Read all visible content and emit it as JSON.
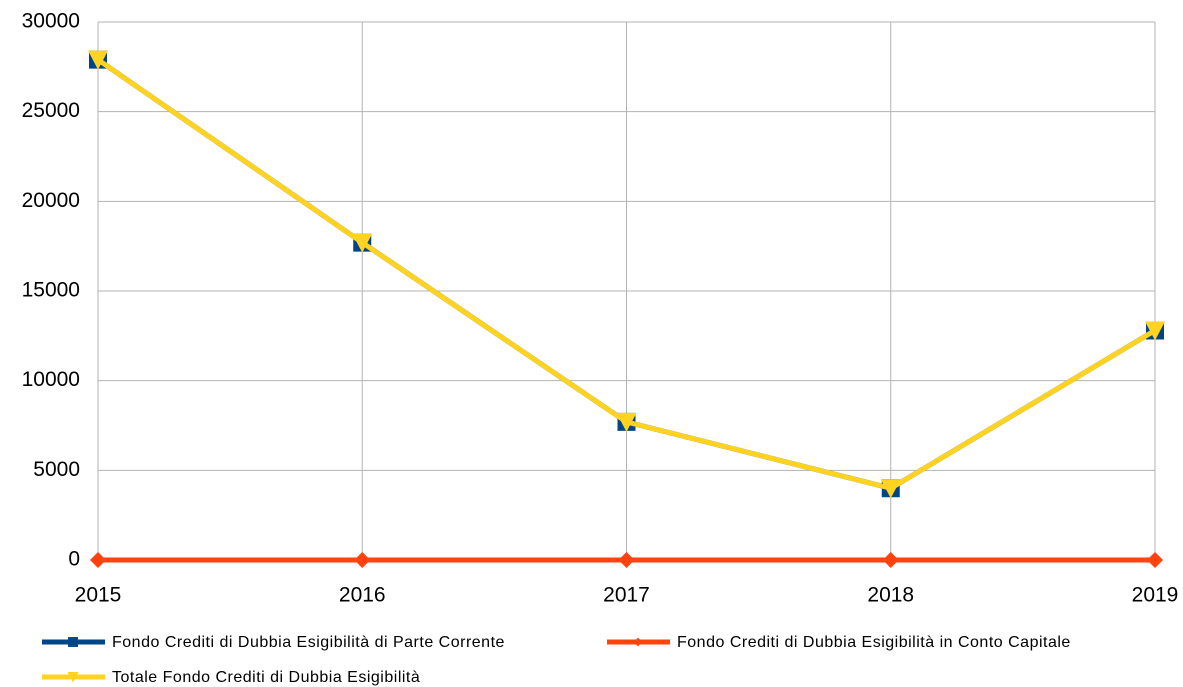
{
  "chart_data": {
    "type": "line",
    "categories": [
      "2015",
      "2016",
      "2017",
      "2018",
      "2019"
    ],
    "series": [
      {
        "name": "Fondo Crediti di Dubbia Esigibilità di Parte Corrente",
        "color": "#004586",
        "marker": "square",
        "values": [
          27900,
          17700,
          7700,
          4000,
          12800
        ]
      },
      {
        "name": "Fondo Crediti di Dubbia Esigibilità in Conto Capitale",
        "color": "#ff420e",
        "marker": "diamond",
        "values": [
          0,
          0,
          0,
          0,
          0
        ]
      },
      {
        "name": "Totale Fondo Crediti di Dubbia Esigibilità",
        "color": "#ffd320",
        "marker": "triangle-down",
        "values": [
          27900,
          17700,
          7700,
          4000,
          12800
        ]
      }
    ],
    "ylim": [
      0,
      30000
    ],
    "yticks": [
      0,
      5000,
      10000,
      15000,
      20000,
      25000,
      30000
    ],
    "grid": true
  }
}
